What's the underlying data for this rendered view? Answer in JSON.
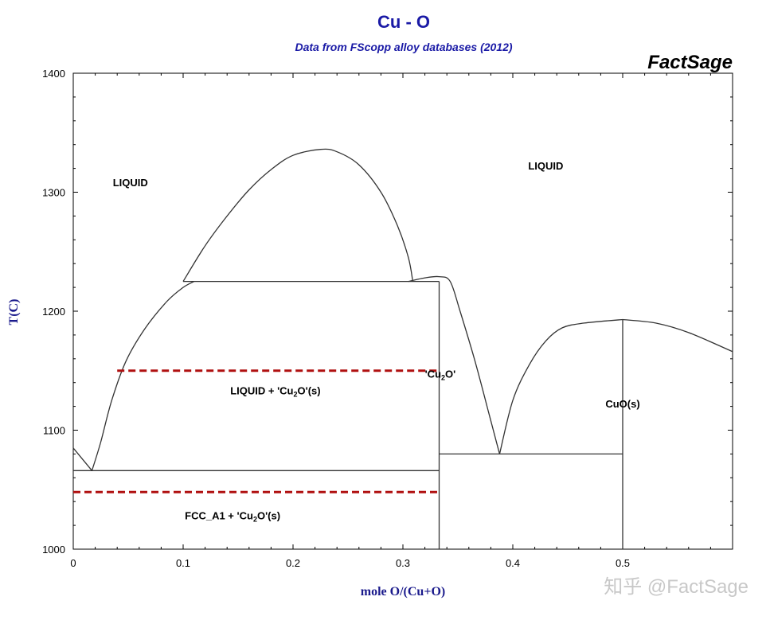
{
  "chart_data": {
    "type": "line",
    "title": "Cu - O",
    "subtitle": "Data from FScopp alloy databases (2012)",
    "brand": "FactSage",
    "watermark": "知乎 @FactSage",
    "xlabel": "mole O/(Cu+O)",
    "ylabel": "T(C)",
    "xlim": [
      0,
      0.6
    ],
    "ylim": [
      1000,
      1400
    ],
    "x_ticks": [
      {
        "value": 0,
        "label": "0"
      },
      {
        "value": 0.1,
        "label": "0.1"
      },
      {
        "value": 0.2,
        "label": "0.2"
      },
      {
        "value": 0.3,
        "label": "0.3"
      },
      {
        "value": 0.4,
        "label": "0.4"
      },
      {
        "value": 0.5,
        "label": "0.5"
      }
    ],
    "y_ticks": [
      {
        "value": 1000,
        "label": "1000"
      },
      {
        "value": 1100,
        "label": "1100"
      },
      {
        "value": 1200,
        "label": "1200"
      },
      {
        "value": 1300,
        "label": "1300"
      },
      {
        "value": 1400,
        "label": "1400"
      }
    ],
    "grid": false,
    "colors": {
      "title": "#1a1aa6",
      "axis_label": "#1a1a8c",
      "curves": "#333333",
      "dashed": "#b01010"
    },
    "series": [
      {
        "style": "solid",
        "points": [
          [
            0.0,
            1085
          ],
          [
            0.017,
            1066
          ]
        ]
      },
      {
        "style": "solid",
        "points": [
          [
            0.017,
            1066
          ],
          [
            0.025,
            1090
          ],
          [
            0.035,
            1125
          ],
          [
            0.048,
            1158
          ],
          [
            0.065,
            1185
          ],
          [
            0.085,
            1208
          ],
          [
            0.1,
            1220
          ],
          [
            0.11,
            1225
          ]
        ]
      },
      {
        "style": "solid",
        "points": [
          [
            0.1,
            1225
          ],
          [
            0.12,
            1255
          ],
          [
            0.14,
            1280
          ],
          [
            0.16,
            1302
          ],
          [
            0.18,
            1319
          ],
          [
            0.2,
            1331
          ],
          [
            0.225,
            1336
          ],
          [
            0.24,
            1334
          ],
          [
            0.26,
            1323
          ],
          [
            0.28,
            1300
          ],
          [
            0.295,
            1272
          ],
          [
            0.305,
            1245
          ],
          [
            0.309,
            1225
          ]
        ]
      },
      {
        "style": "solid",
        "points": [
          [
            0.1,
            1225
          ],
          [
            0.333,
            1225
          ]
        ]
      },
      {
        "style": "solid",
        "points": [
          [
            0.0,
            1066
          ],
          [
            0.333,
            1066
          ]
        ]
      },
      {
        "style": "solid",
        "points": [
          [
            0.333,
            1000
          ],
          [
            0.333,
            1225
          ]
        ]
      },
      {
        "style": "solid",
        "points": [
          [
            0.305,
            1225
          ],
          [
            0.32,
            1228
          ],
          [
            0.333,
            1229
          ],
          [
            0.343,
            1225
          ],
          [
            0.352,
            1200
          ],
          [
            0.365,
            1160
          ],
          [
            0.378,
            1115
          ],
          [
            0.388,
            1080
          ]
        ]
      },
      {
        "style": "solid",
        "points": [
          [
            0.388,
            1080
          ],
          [
            0.4,
            1125
          ],
          [
            0.415,
            1155
          ],
          [
            0.43,
            1175
          ],
          [
            0.445,
            1186
          ],
          [
            0.465,
            1190
          ],
          [
            0.5,
            1193
          ]
        ]
      },
      {
        "style": "solid",
        "points": [
          [
            0.5,
            1193
          ],
          [
            0.53,
            1190
          ],
          [
            0.56,
            1182
          ],
          [
            0.6,
            1166
          ]
        ]
      },
      {
        "style": "solid",
        "points": [
          [
            0.333,
            1080
          ],
          [
            0.5,
            1080
          ]
        ]
      },
      {
        "style": "solid",
        "points": [
          [
            0.5,
            1000
          ],
          [
            0.5,
            1193
          ]
        ]
      },
      {
        "style": "dashed",
        "points": [
          [
            0.04,
            1150
          ],
          [
            0.333,
            1150
          ]
        ]
      },
      {
        "style": "dashed",
        "points": [
          [
            0.0,
            1048
          ],
          [
            0.333,
            1048
          ]
        ]
      }
    ],
    "annotations": [
      {
        "key": "liquid_left",
        "x": 0.052,
        "y": 1305,
        "parts": [
          {
            "t": "LIQUID"
          }
        ]
      },
      {
        "key": "liquid_right",
        "x": 0.43,
        "y": 1319,
        "parts": [
          {
            "t": "LIQUID"
          }
        ]
      },
      {
        "key": "liquid_cu2o",
        "x": 0.184,
        "y": 1130,
        "parts": [
          {
            "t": "LIQUID + 'Cu"
          },
          {
            "t": "2",
            "sub": true
          },
          {
            "t": "O'(s)"
          }
        ]
      },
      {
        "key": "cu2o",
        "x": 0.334,
        "y": 1144,
        "parts": [
          {
            "t": "'Cu"
          },
          {
            "t": "2",
            "sub": true
          },
          {
            "t": "O'"
          }
        ]
      },
      {
        "key": "cuo",
        "x": 0.5,
        "y": 1119,
        "parts": [
          {
            "t": "CuO(s)"
          }
        ]
      },
      {
        "key": "fcc_cu2o",
        "x": 0.145,
        "y": 1025,
        "parts": [
          {
            "t": "FCC_A1 + 'Cu"
          },
          {
            "t": "2",
            "sub": true
          },
          {
            "t": "O'(s)"
          }
        ]
      }
    ]
  }
}
